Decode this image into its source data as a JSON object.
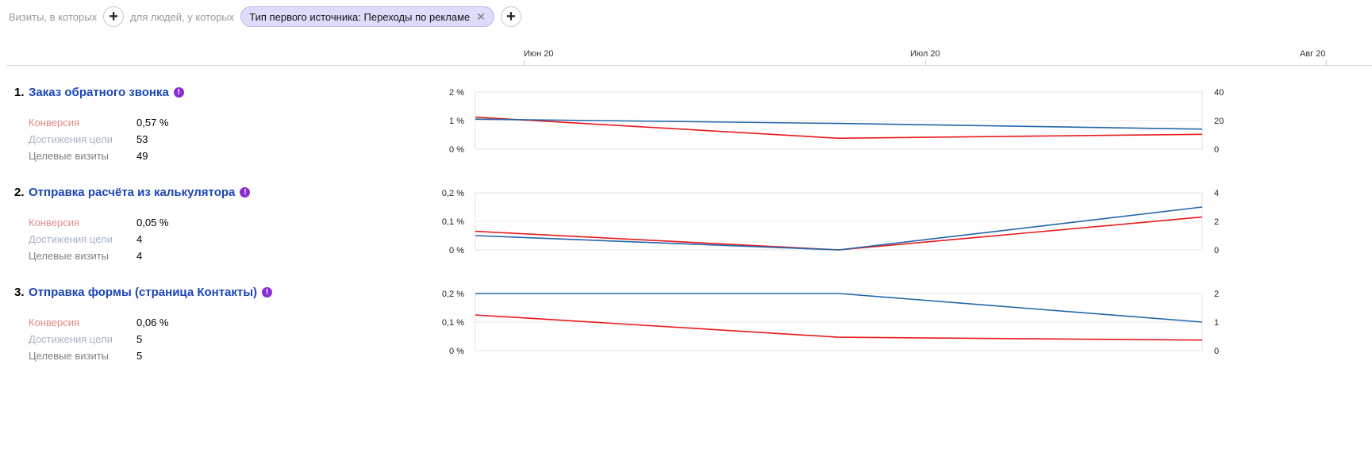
{
  "filter_bar": {
    "visits_label": "Визиты, в которых",
    "people_label": "для людей, у которых",
    "chip_label": "Тип первого источника: Переходы по рекламе",
    "add_icon": "plus-icon",
    "close_icon": "close-icon"
  },
  "timeline": {
    "dates": [
      "Июн 20",
      "Июл 20",
      "Авг 20"
    ]
  },
  "colors": {
    "conversion_line": "#e8191c",
    "visits_line": "#2266aa",
    "title_link": "#1a45b8",
    "info_icon": "#8a2ed1"
  },
  "metric_labels": {
    "conversion": "Конверсия",
    "goal_reaches": "Достижения цели",
    "target_visits": "Целевые визиты"
  },
  "goals": [
    {
      "number": "1.",
      "name": "Заказ обратного звонка",
      "info_icon": "!",
      "conversion": "0,57 %",
      "goal_reaches": "53",
      "target_visits": "49"
    },
    {
      "number": "2.",
      "name": "Отправка расчёта из калькулятора",
      "info_icon": "!",
      "conversion": "0,05 %",
      "goal_reaches": "4",
      "target_visits": "4"
    },
    {
      "number": "3.",
      "name": "Отправка формы (страница Контакты)",
      "info_icon": "!",
      "conversion": "0,06 %",
      "goal_reaches": "5",
      "target_visits": "5"
    }
  ],
  "chart_data": [
    {
      "type": "line",
      "x": [
        "Июн 20",
        "Июл 20",
        "Авг 20"
      ],
      "left_axis": {
        "ticks": [
          "2 %",
          "1 %",
          "0 %"
        ],
        "ylim": [
          0,
          2
        ]
      },
      "right_axis": {
        "ticks": [
          "40",
          "20",
          "0"
        ],
        "ylim": [
          0,
          40
        ]
      },
      "series": [
        {
          "axis": "left",
          "color": "#e8191c",
          "values": [
            1.12,
            0.38,
            0.52
          ]
        },
        {
          "axis": "right",
          "color": "#2266aa",
          "values": [
            21,
            18,
            14
          ]
        }
      ]
    },
    {
      "type": "line",
      "x": [
        "Июн 20",
        "Июл 20",
        "Авг 20"
      ],
      "left_axis": {
        "ticks": [
          "0,2 %",
          "0,1 %",
          "0 %"
        ],
        "ylim": [
          0,
          0.2
        ]
      },
      "right_axis": {
        "ticks": [
          "4",
          "2",
          "0"
        ],
        "ylim": [
          0,
          4
        ]
      },
      "series": [
        {
          "axis": "left",
          "color": "#e8191c",
          "values": [
            0.065,
            0.0,
            0.115
          ]
        },
        {
          "axis": "right",
          "color": "#2266aa",
          "values": [
            1.0,
            0.0,
            3.0
          ]
        }
      ]
    },
    {
      "type": "line",
      "x": [
        "Июн 20",
        "Июл 20",
        "Авг 20"
      ],
      "left_axis": {
        "ticks": [
          "0,2 %",
          "0,1 %",
          "0 %"
        ],
        "ylim": [
          0,
          0.2
        ]
      },
      "right_axis": {
        "ticks": [
          "2",
          "1",
          "0"
        ],
        "ylim": [
          0,
          2
        ]
      },
      "series": [
        {
          "axis": "left",
          "color": "#e8191c",
          "values": [
            0.125,
            0.047,
            0.037
          ]
        },
        {
          "axis": "right",
          "color": "#2266aa",
          "values": [
            2,
            2,
            1
          ]
        }
      ]
    }
  ]
}
